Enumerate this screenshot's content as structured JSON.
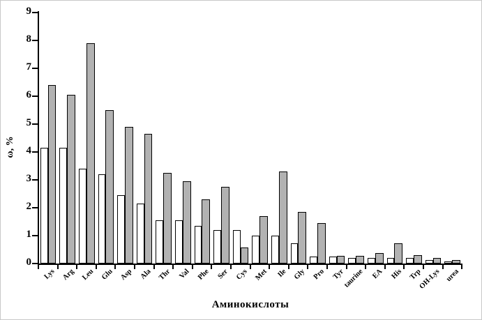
{
  "chart_data": {
    "type": "bar",
    "title": "",
    "xlabel": "Аминокислоты",
    "ylabel": "ω, %",
    "ylim": [
      0,
      9
    ],
    "yticks": [
      0,
      1,
      2,
      3,
      4,
      5,
      6,
      7,
      8,
      9
    ],
    "grid": false,
    "legend": "none",
    "categories": [
      "Lys",
      "Arg",
      "Leu",
      "Glu",
      "Asp",
      "Ala",
      "Thr",
      "Val",
      "Phe",
      "Ser",
      "Cys",
      "Met",
      "Ile",
      "Gly",
      "Pro",
      "Tyr",
      "taurine",
      "EA",
      "His",
      "Trp",
      "OH-Lys",
      "urea"
    ],
    "series": [
      {
        "name": "series-1-white",
        "fill": "#ffffff",
        "border": "#000000",
        "values": [
          4.15,
          4.15,
          3.4,
          3.2,
          2.45,
          2.15,
          1.55,
          1.55,
          1.35,
          1.2,
          1.2,
          1.0,
          1.0,
          0.73,
          0.25,
          0.25,
          0.2,
          0.2,
          0.2,
          0.2,
          0.12,
          0.07
        ]
      },
      {
        "name": "series-2-gray",
        "fill": "#b2b2b2",
        "border": "#000000",
        "values": [
          6.4,
          6.05,
          7.9,
          5.5,
          4.9,
          4.65,
          3.25,
          2.95,
          2.3,
          2.75,
          0.58,
          1.7,
          3.3,
          1.85,
          1.45,
          0.27,
          0.28,
          0.38,
          0.73,
          0.3,
          0.2,
          0.12
        ]
      }
    ],
    "colors": {
      "axis": "#000000",
      "background": "#ffffff"
    }
  }
}
